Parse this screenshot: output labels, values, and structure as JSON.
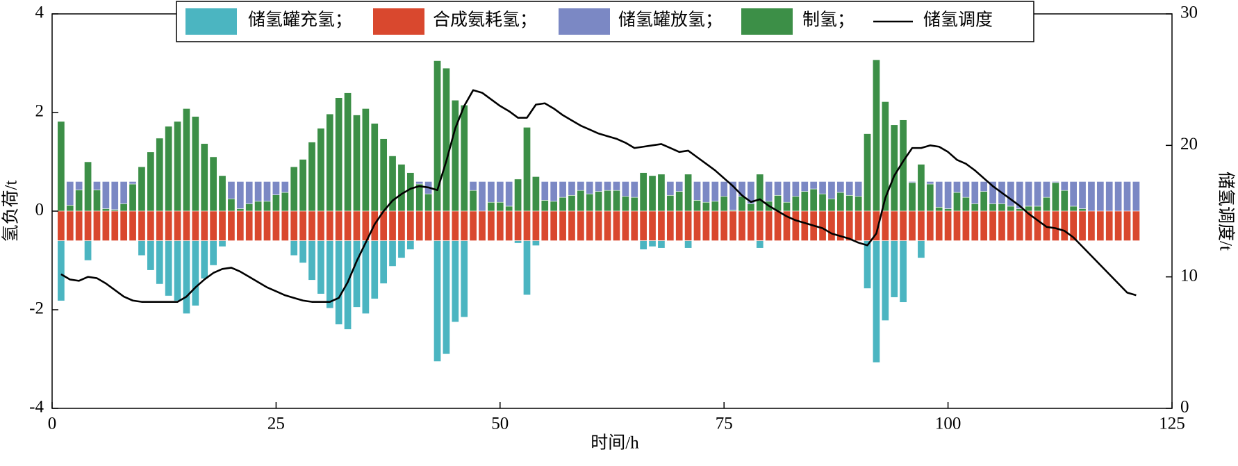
{
  "chart_data": {
    "type": "bar",
    "x_label": "时间/h",
    "y_label": "氢负荷/t",
    "y2_label": "储氢调度/t",
    "xlim": [
      0,
      125
    ],
    "xticks": [
      0,
      25,
      50,
      75,
      100,
      125
    ],
    "ylim": [
      -4,
      4
    ],
    "yticks": [
      -4,
      -2,
      0,
      2,
      4
    ],
    "y2lim": [
      0,
      30
    ],
    "y2ticks": [
      0,
      10,
      20,
      30
    ],
    "legend": "top",
    "x": [
      1,
      2,
      3,
      4,
      5,
      6,
      7,
      8,
      9,
      10,
      11,
      12,
      13,
      14,
      15,
      16,
      17,
      18,
      19,
      20,
      21,
      22,
      23,
      24,
      25,
      26,
      27,
      28,
      29,
      30,
      31,
      32,
      33,
      34,
      35,
      36,
      37,
      38,
      39,
      40,
      41,
      42,
      43,
      44,
      45,
      46,
      47,
      48,
      49,
      50,
      51,
      52,
      53,
      54,
      55,
      56,
      57,
      58,
      59,
      60,
      61,
      62,
      63,
      64,
      65,
      66,
      67,
      68,
      69,
      70,
      71,
      72,
      73,
      74,
      75,
      76,
      77,
      78,
      79,
      80,
      81,
      82,
      83,
      84,
      85,
      86,
      87,
      88,
      89,
      90,
      91,
      92,
      93,
      94,
      95,
      96,
      97,
      98,
      99,
      100,
      101,
      102,
      103,
      104,
      105,
      106,
      107,
      108,
      109,
      110,
      111,
      112,
      113,
      114,
      115,
      116,
      117,
      118,
      119,
      120,
      121
    ],
    "series": [
      {
        "name": "储氢罐充氢；",
        "color": "#4bb5c1",
        "values": [
          -1.22,
          0,
          0,
          -0.4,
          0,
          0,
          0,
          0,
          0,
          -0.3,
          -0.6,
          -0.88,
          -1.12,
          -1.22,
          -1.48,
          -1.32,
          -0.77,
          -0.5,
          -0.12,
          0,
          0,
          0,
          0,
          0,
          0,
          0,
          -0.3,
          -0.45,
          -0.8,
          -1.08,
          -1.37,
          -1.7,
          -1.8,
          -1.35,
          -1.48,
          -1.18,
          -0.87,
          -0.52,
          -0.35,
          -0.18,
          0,
          0,
          -2.45,
          -2.3,
          -1.65,
          -1.55,
          0,
          0,
          0,
          0,
          0,
          -0.05,
          -1.1,
          -0.1,
          0,
          0,
          0,
          0,
          0,
          0,
          0,
          0,
          0,
          0,
          0,
          -0.18,
          -0.12,
          -0.15,
          0,
          0,
          -0.15,
          0,
          0,
          0,
          0,
          0,
          0,
          0,
          -0.15,
          0,
          0,
          0,
          0,
          0,
          0,
          0,
          0,
          0,
          0,
          0,
          -0.97,
          -2.47,
          -1.62,
          -1.15,
          -1.25,
          0,
          -0.35,
          0,
          0,
          0,
          0,
          0,
          0,
          0,
          0,
          0,
          0,
          0,
          0,
          0,
          0,
          0,
          0,
          0,
          0,
          0,
          0,
          0,
          0,
          0,
          0
        ]
      },
      {
        "name": "合成氨耗氢；",
        "color": "#d9482e",
        "values": [
          -0.6,
          -0.6,
          -0.6,
          -0.6,
          -0.6,
          -0.6,
          -0.6,
          -0.6,
          -0.6,
          -0.6,
          -0.6,
          -0.6,
          -0.6,
          -0.6,
          -0.6,
          -0.6,
          -0.6,
          -0.6,
          -0.6,
          -0.6,
          -0.6,
          -0.6,
          -0.6,
          -0.6,
          -0.6,
          -0.6,
          -0.6,
          -0.6,
          -0.6,
          -0.6,
          -0.6,
          -0.6,
          -0.6,
          -0.6,
          -0.6,
          -0.6,
          -0.6,
          -0.6,
          -0.6,
          -0.6,
          -0.6,
          -0.6,
          -0.6,
          -0.6,
          -0.6,
          -0.6,
          -0.6,
          -0.6,
          -0.6,
          -0.6,
          -0.6,
          -0.6,
          -0.6,
          -0.6,
          -0.6,
          -0.6,
          -0.6,
          -0.6,
          -0.6,
          -0.6,
          -0.6,
          -0.6,
          -0.6,
          -0.6,
          -0.6,
          -0.6,
          -0.6,
          -0.6,
          -0.6,
          -0.6,
          -0.6,
          -0.6,
          -0.6,
          -0.6,
          -0.6,
          -0.6,
          -0.6,
          -0.6,
          -0.6,
          -0.6,
          -0.6,
          -0.6,
          -0.6,
          -0.6,
          -0.6,
          -0.6,
          -0.6,
          -0.6,
          -0.6,
          -0.6,
          -0.6,
          -0.6,
          -0.6,
          -0.6,
          -0.6,
          -0.6,
          -0.6,
          -0.6,
          -0.6,
          -0.6,
          -0.6,
          -0.6,
          -0.6,
          -0.6,
          -0.6,
          -0.6,
          -0.6,
          -0.6,
          -0.6,
          -0.6,
          -0.6,
          -0.6,
          -0.6,
          -0.6,
          -0.6,
          -0.6,
          -0.6,
          -0.6,
          -0.6,
          -0.6,
          -0.6
        ]
      },
      {
        "name": "储氢罐放氢；",
        "color": "#7b88c4",
        "values": [
          0,
          0.48,
          0.17,
          0,
          0.17,
          0.55,
          0.57,
          0.45,
          0.05,
          0,
          0,
          0,
          0,
          0,
          0,
          0,
          0,
          0,
          0,
          0.35,
          0.55,
          0.45,
          0.4,
          0.4,
          0.27,
          0.22,
          0,
          0,
          0,
          0,
          0,
          0,
          0,
          0,
          0,
          0,
          0,
          0,
          0,
          0,
          0.05,
          0.25,
          0,
          0,
          0,
          0,
          0.18,
          0.6,
          0.42,
          0.42,
          0.5,
          0,
          0,
          0,
          0.38,
          0.4,
          0.32,
          0.28,
          0.18,
          0.25,
          0.2,
          0.18,
          0.18,
          0.3,
          0.32,
          0,
          0,
          0,
          0.28,
          0.2,
          0,
          0.38,
          0.42,
          0.4,
          0.3,
          0.58,
          0.3,
          0.45,
          0,
          0.4,
          0.28,
          0.42,
          0.3,
          0.2,
          0.15,
          0.25,
          0.35,
          0.22,
          0.28,
          0.3,
          0,
          0,
          0,
          0,
          0,
          0.02,
          0,
          0.05,
          0.52,
          0.55,
          0.22,
          0.32,
          0.45,
          0.2,
          0.45,
          0.45,
          0.5,
          0.55,
          0.5,
          0.5,
          0.32,
          0.02,
          0.18,
          0.5,
          0.55,
          0.6,
          0.6,
          0.6,
          0.6,
          0.6,
          0.6
        ]
      },
      {
        "name": "制氢；",
        "color": "#3c8f47",
        "values": [
          1.82,
          0.12,
          0.43,
          1.0,
          0.43,
          0.05,
          0.03,
          0.15,
          0.55,
          0.9,
          1.2,
          1.48,
          1.72,
          1.82,
          2.08,
          1.92,
          1.37,
          1.1,
          0.72,
          0.25,
          0.05,
          0.15,
          0.2,
          0.2,
          0.33,
          0.38,
          0.9,
          1.05,
          1.4,
          1.68,
          1.97,
          2.3,
          2.4,
          1.95,
          2.08,
          1.78,
          1.47,
          1.12,
          0.95,
          0.78,
          0.55,
          0.35,
          3.05,
          2.9,
          2.25,
          2.15,
          0.42,
          0,
          0.18,
          0.18,
          0.1,
          0.65,
          1.7,
          0.7,
          0.22,
          0.2,
          0.28,
          0.32,
          0.42,
          0.35,
          0.4,
          0.42,
          0.42,
          0.3,
          0.28,
          0.78,
          0.72,
          0.75,
          0.32,
          0.4,
          0.75,
          0.22,
          0.18,
          0.2,
          0.3,
          0.02,
          0.3,
          0.15,
          0.75,
          0.2,
          0.32,
          0.18,
          0.3,
          0.4,
          0.45,
          0.35,
          0.25,
          0.38,
          0.32,
          0.3,
          1.57,
          3.07,
          2.22,
          1.75,
          1.85,
          0.58,
          0.95,
          0.55,
          0.08,
          0.05,
          0.38,
          0.28,
          0.15,
          0.4,
          0.15,
          0.15,
          0.1,
          0.05,
          0.1,
          0.1,
          0.28,
          0.58,
          0.42,
          0.1,
          0.05,
          0,
          0,
          0,
          0,
          0,
          0
        ]
      },
      {
        "name": "储氢调度",
        "color": "#000000",
        "type": "line",
        "axis": "y2",
        "values": [
          10.2,
          9.8,
          9.7,
          10.0,
          9.9,
          9.5,
          9.0,
          8.5,
          8.2,
          8.1,
          8.1,
          8.1,
          8.1,
          8.1,
          8.5,
          9.2,
          9.8,
          10.3,
          10.6,
          10.7,
          10.4,
          10.0,
          9.6,
          9.2,
          8.9,
          8.6,
          8.4,
          8.2,
          8.1,
          8.1,
          8.1,
          8.4,
          9.6,
          11.2,
          12.6,
          14.0,
          15.0,
          15.8,
          16.3,
          16.7,
          16.9,
          16.8,
          16.6,
          18.8,
          21.3,
          23.0,
          24.2,
          24.0,
          23.5,
          23.0,
          22.6,
          22.1,
          22.1,
          23.1,
          23.2,
          22.8,
          22.3,
          21.9,
          21.5,
          21.2,
          20.9,
          20.7,
          20.5,
          20.2,
          19.8,
          19.9,
          20.0,
          20.1,
          19.8,
          19.5,
          19.6,
          19.1,
          18.6,
          18.1,
          17.5,
          16.9,
          16.2,
          15.7,
          15.9,
          15.4,
          15.0,
          14.6,
          14.3,
          14.1,
          13.9,
          13.7,
          13.3,
          13.1,
          12.9,
          12.6,
          12.4,
          13.3,
          16.0,
          17.7,
          18.8,
          19.8,
          19.8,
          20.0,
          19.9,
          19.5,
          18.9,
          18.6,
          18.1,
          17.5,
          16.9,
          16.4,
          15.9,
          15.4,
          14.8,
          14.3,
          13.8,
          13.7,
          13.5,
          13.0,
          12.3,
          11.6,
          10.9,
          10.2,
          9.5,
          8.8,
          8.6
        ]
      }
    ]
  }
}
